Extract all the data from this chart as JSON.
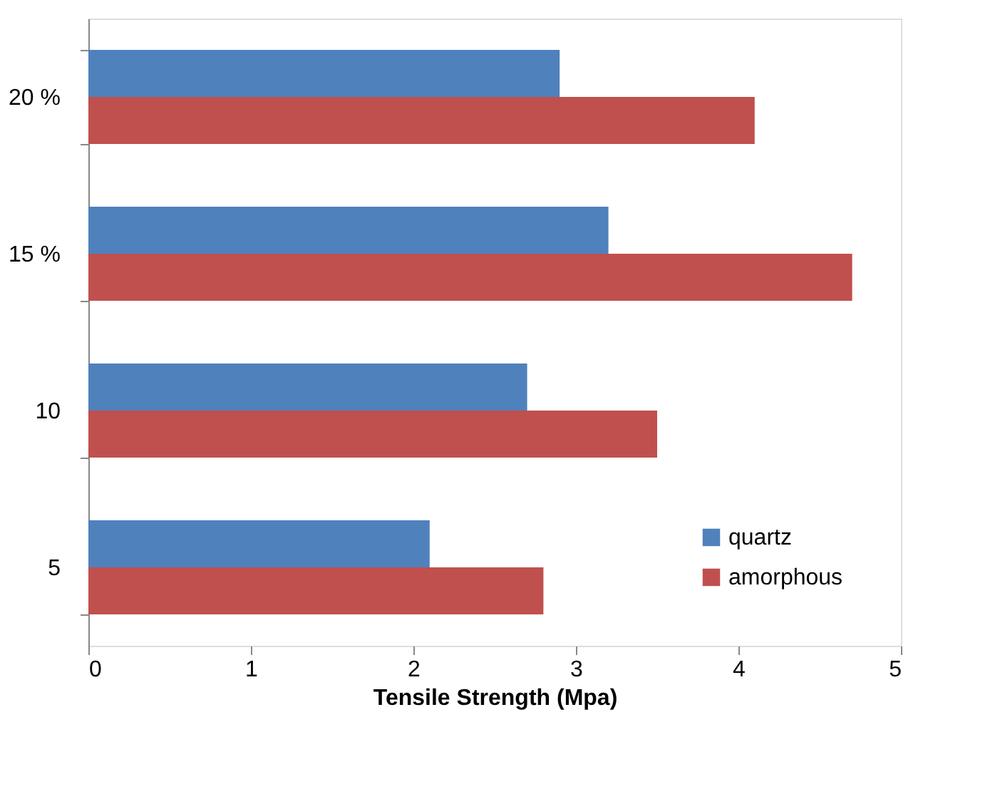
{
  "chart_data": {
    "type": "bar",
    "orientation": "horizontal",
    "xlabel": "Tensile Strength (Mpa)",
    "categories": [
      "20 %",
      "15 %",
      "10",
      "5"
    ],
    "series": [
      {
        "name": "quartz",
        "color": "#4f81bd",
        "values": [
          2.9,
          3.2,
          2.7,
          2.1
        ]
      },
      {
        "name": "amorphous",
        "color": "#c0504d",
        "values": [
          4.1,
          4.7,
          3.5,
          2.8
        ]
      }
    ],
    "xlim": [
      0,
      5
    ],
    "xticks": [
      0,
      1,
      2,
      3,
      4,
      5
    ],
    "grid": false,
    "legend": "bottom right"
  }
}
